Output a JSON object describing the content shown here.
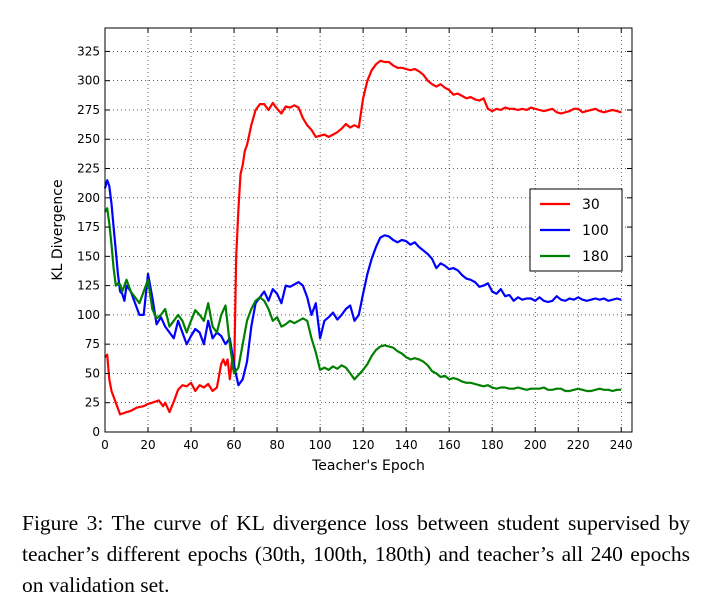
{
  "chart_data": {
    "type": "line",
    "xlabel": "Teacher's Epoch",
    "ylabel": "KL Divergence",
    "xlim": [
      0,
      245
    ],
    "ylim": [
      0,
      345
    ],
    "xticks": [
      0,
      20,
      40,
      60,
      80,
      100,
      120,
      140,
      160,
      180,
      200,
      220,
      240
    ],
    "yticks": [
      0,
      25,
      50,
      75,
      100,
      125,
      150,
      175,
      200,
      225,
      250,
      275,
      300,
      325
    ],
    "grid": true,
    "legend_position": "right",
    "series": [
      {
        "name": "30",
        "color": "#ff0000",
        "x": [
          0,
          1,
          2,
          3,
          5,
          7,
          10,
          12,
          15,
          18,
          20,
          22,
          25,
          27,
          28,
          30,
          32,
          34,
          36,
          38,
          40,
          42,
          44,
          46,
          48,
          50,
          52,
          54,
          55,
          56,
          57,
          58,
          59,
          60,
          61,
          62,
          63,
          64,
          65,
          66,
          68,
          70,
          72,
          74,
          76,
          78,
          80,
          82,
          84,
          86,
          88,
          90,
          92,
          94,
          96,
          98,
          100,
          102,
          104,
          106,
          108,
          110,
          112,
          114,
          116,
          118,
          120,
          122,
          124,
          126,
          128,
          130,
          132,
          134,
          136,
          138,
          140,
          142,
          144,
          146,
          148,
          150,
          152,
          154,
          156,
          158,
          160,
          162,
          164,
          166,
          168,
          170,
          172,
          174,
          176,
          178,
          180,
          182,
          184,
          186,
          188,
          190,
          192,
          194,
          196,
          198,
          200,
          202,
          204,
          206,
          208,
          210,
          212,
          214,
          216,
          218,
          220,
          222,
          224,
          226,
          228,
          230,
          232,
          234,
          236,
          238,
          240
        ],
        "y": [
          64,
          66,
          45,
          35,
          25,
          15,
          17,
          18,
          21,
          22,
          24,
          25,
          27,
          22,
          25,
          17,
          26,
          36,
          40,
          39,
          42,
          35,
          40,
          38,
          41,
          35,
          38,
          58,
          62,
          57,
          62,
          45,
          60,
          50,
          150,
          190,
          220,
          228,
          240,
          245,
          262,
          275,
          280,
          280,
          275,
          281,
          276,
          272,
          278,
          277,
          279,
          277,
          268,
          262,
          258,
          252,
          253,
          254,
          252,
          254,
          256,
          259,
          263,
          260,
          262,
          260,
          285,
          300,
          309,
          314,
          317,
          316,
          316,
          313,
          311,
          311,
          310,
          309,
          310,
          308,
          305,
          300,
          297,
          295,
          297,
          294,
          292,
          288,
          289,
          287,
          285,
          286,
          284,
          283,
          285,
          276,
          274,
          276,
          275,
          277,
          276,
          276,
          275,
          276,
          275,
          277,
          276,
          275,
          274,
          275,
          276,
          273,
          272,
          273,
          274,
          276,
          276,
          273,
          274,
          275,
          276,
          274,
          273,
          274,
          275,
          274,
          273
        ]
      },
      {
        "name": "100",
        "color": "#0000ff",
        "x": [
          0,
          1,
          2,
          3,
          4,
          5,
          6,
          7,
          8,
          9,
          10,
          12,
          14,
          16,
          18,
          20,
          22,
          24,
          26,
          28,
          30,
          32,
          34,
          36,
          38,
          40,
          42,
          44,
          46,
          48,
          50,
          52,
          54,
          56,
          58,
          60,
          62,
          64,
          66,
          68,
          70,
          72,
          74,
          76,
          78,
          80,
          82,
          84,
          86,
          88,
          90,
          92,
          94,
          96,
          98,
          100,
          102,
          104,
          106,
          108,
          110,
          112,
          114,
          116,
          118,
          120,
          122,
          124,
          126,
          128,
          130,
          132,
          134,
          136,
          138,
          140,
          142,
          144,
          146,
          148,
          150,
          152,
          154,
          156,
          158,
          160,
          162,
          164,
          166,
          168,
          170,
          172,
          174,
          176,
          178,
          180,
          182,
          184,
          186,
          188,
          190,
          192,
          194,
          196,
          198,
          200,
          202,
          204,
          206,
          208,
          210,
          212,
          214,
          216,
          218,
          220,
          222,
          224,
          226,
          228,
          230,
          232,
          234,
          236,
          238,
          240
        ],
        "y": [
          208,
          215,
          210,
          195,
          175,
          155,
          135,
          120,
          118,
          112,
          125,
          120,
          110,
          100,
          100,
          135,
          115,
          92,
          98,
          90,
          85,
          80,
          95,
          85,
          75,
          82,
          88,
          85,
          75,
          95,
          80,
          85,
          82,
          75,
          80,
          57,
          40,
          45,
          60,
          90,
          110,
          115,
          120,
          112,
          122,
          118,
          110,
          125,
          124,
          126,
          128,
          125,
          115,
          100,
          110,
          80,
          95,
          98,
          102,
          96,
          100,
          105,
          108,
          95,
          100,
          118,
          135,
          148,
          158,
          166,
          168,
          167,
          164,
          162,
          164,
          163,
          160,
          162,
          158,
          155,
          152,
          148,
          140,
          144,
          142,
          139,
          140,
          138,
          134,
          131,
          130,
          128,
          124,
          125,
          127,
          120,
          118,
          122,
          116,
          117,
          112,
          115,
          113,
          114,
          114,
          112,
          115,
          112,
          111,
          112,
          116,
          113,
          112,
          114,
          113,
          115,
          113,
          112,
          113,
          114,
          113,
          114,
          112,
          113,
          114,
          113
        ]
      },
      {
        "name": "180",
        "color": "#008000",
        "x": [
          0,
          1,
          2,
          3,
          4,
          5,
          6,
          7,
          8,
          9,
          10,
          12,
          14,
          16,
          18,
          20,
          22,
          24,
          26,
          28,
          30,
          32,
          34,
          36,
          38,
          40,
          42,
          44,
          46,
          48,
          50,
          52,
          54,
          56,
          58,
          60,
          62,
          64,
          66,
          68,
          70,
          72,
          74,
          76,
          78,
          80,
          82,
          84,
          86,
          88,
          90,
          92,
          94,
          96,
          98,
          100,
          102,
          104,
          106,
          108,
          110,
          112,
          114,
          116,
          118,
          120,
          122,
          124,
          126,
          128,
          130,
          132,
          134,
          136,
          138,
          140,
          142,
          144,
          146,
          148,
          150,
          152,
          154,
          156,
          158,
          160,
          162,
          164,
          166,
          168,
          170,
          172,
          174,
          176,
          178,
          180,
          182,
          184,
          186,
          188,
          190,
          192,
          194,
          196,
          198,
          200,
          202,
          204,
          206,
          208,
          210,
          212,
          214,
          216,
          218,
          220,
          222,
          224,
          226,
          228,
          230,
          232,
          234,
          236,
          238,
          240
        ],
        "y": [
          188,
          191,
          178,
          160,
          140,
          125,
          127,
          126,
          120,
          125,
          130,
          120,
          115,
          110,
          120,
          130,
          105,
          97,
          100,
          105,
          90,
          95,
          100,
          95,
          85,
          95,
          104,
          100,
          95,
          110,
          90,
          85,
          100,
          108,
          75,
          50,
          55,
          75,
          95,
          105,
          112,
          115,
          112,
          105,
          95,
          98,
          90,
          92,
          95,
          93,
          95,
          97,
          95,
          80,
          68,
          53,
          55,
          53,
          56,
          54,
          57,
          55,
          50,
          45,
          49,
          53,
          58,
          65,
          70,
          73,
          74,
          73,
          72,
          69,
          67,
          64,
          62,
          63,
          62,
          60,
          57,
          52,
          50,
          47,
          48,
          45,
          46,
          45,
          43,
          42,
          42,
          41,
          40,
          39,
          40,
          38,
          37,
          38,
          38,
          37,
          37,
          38,
          37,
          36,
          37,
          37,
          37,
          38,
          36,
          36,
          37,
          37,
          35,
          35,
          36,
          37,
          36,
          35,
          35,
          36,
          37,
          36,
          36,
          35,
          36,
          36
        ]
      }
    ]
  },
  "caption": "Figure 3:  The curve of KL divergence loss between student supervised by teacher’s different epochs (30th, 100th, 180th) and teacher’s all 240 epochs on validation set."
}
